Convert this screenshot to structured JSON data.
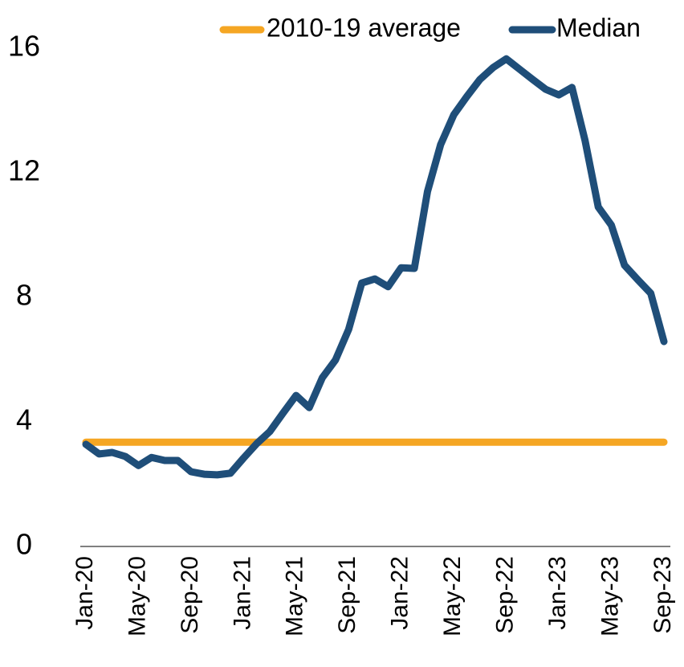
{
  "chart_data": {
    "type": "line",
    "categories": [
      "Jan-20",
      null,
      null,
      null,
      "May-20",
      null,
      null,
      null,
      "Sep-20",
      null,
      null,
      null,
      "Jan-21",
      null,
      null,
      null,
      "May-21",
      null,
      null,
      null,
      "Sep-21",
      null,
      null,
      null,
      "Jan-22",
      null,
      null,
      null,
      "May-22",
      null,
      null,
      null,
      "Sep-22",
      null,
      null,
      null,
      "Jan-23",
      null,
      null,
      null,
      "May-23",
      null,
      null,
      null,
      "Sep-23"
    ],
    "series": [
      {
        "name": "2010-19 average",
        "color": "#f5a623",
        "values": [
          3.35,
          3.35,
          3.35,
          3.35,
          3.35,
          3.35,
          3.35,
          3.35,
          3.35,
          3.35,
          3.35,
          3.35,
          3.35,
          3.35,
          3.35,
          3.35,
          3.35,
          3.35,
          3.35,
          3.35,
          3.35,
          3.35,
          3.35,
          3.35,
          3.35,
          3.35,
          3.35,
          3.35,
          3.35,
          3.35,
          3.35,
          3.35,
          3.35,
          3.35,
          3.35,
          3.35,
          3.35,
          3.35,
          3.35,
          3.35,
          3.35,
          3.35,
          3.35,
          3.35,
          3.35
        ]
      },
      {
        "name": "Median",
        "color": "#1f4e79",
        "values": [
          3.28,
          2.97,
          3.02,
          2.89,
          2.6,
          2.86,
          2.76,
          2.76,
          2.4,
          2.32,
          2.3,
          2.35,
          2.84,
          3.3,
          3.69,
          4.28,
          4.85,
          4.46,
          5.42,
          5.99,
          6.97,
          8.46,
          8.59,
          8.34,
          8.95,
          8.93,
          11.4,
          12.9,
          13.86,
          14.45,
          15.0,
          15.38,
          15.66,
          15.33,
          15.0,
          14.68,
          14.5,
          14.74,
          13.03,
          10.9,
          10.32,
          9.03,
          8.57,
          8.13,
          6.58
        ]
      }
    ],
    "ylim": [
      0,
      16
    ],
    "yticks": [
      0,
      4,
      8,
      12,
      16
    ],
    "grid": false,
    "legend": "top"
  }
}
